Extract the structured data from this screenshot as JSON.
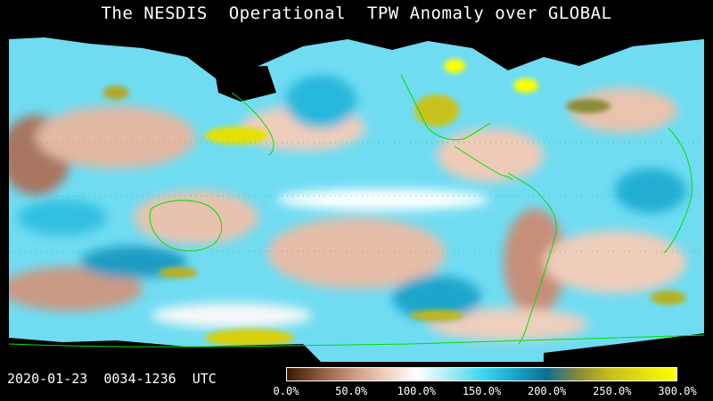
{
  "title": "The NESDIS  Operational  TPW Anomaly over GLOBAL",
  "timestamp": "2020-01-23  0034-1236  UTC",
  "colorbar": {
    "min": 0,
    "max": 300,
    "unit": "%",
    "stops": [
      {
        "value": 0,
        "color": "#3a1800"
      },
      {
        "value": 25,
        "color": "#8a5a3c"
      },
      {
        "value": 50,
        "color": "#c9977f"
      },
      {
        "value": 75,
        "color": "#f0cdbb"
      },
      {
        "value": 100,
        "color": "#ffffff"
      },
      {
        "value": 125,
        "color": "#a8ecf6"
      },
      {
        "value": 150,
        "color": "#3fd6f2"
      },
      {
        "value": 175,
        "color": "#1aa6cc"
      },
      {
        "value": 200,
        "color": "#0f6f8f"
      },
      {
        "value": 225,
        "color": "#8a8a3a"
      },
      {
        "value": 250,
        "color": "#c9c21a"
      },
      {
        "value": 300,
        "color": "#ffff00"
      }
    ],
    "ticks": [
      "0.0%",
      "50.0%",
      "100.0%",
      "150.0%",
      "200.0%",
      "250.0%",
      "300.0%"
    ]
  },
  "colors": {
    "background": "#000000",
    "coastline": "#00e000",
    "dry": "#c99a84",
    "neutral": "#ffffff",
    "moist": "#40d4f0",
    "very_moist": "#1a9cc4",
    "extreme": "#e6e000"
  }
}
